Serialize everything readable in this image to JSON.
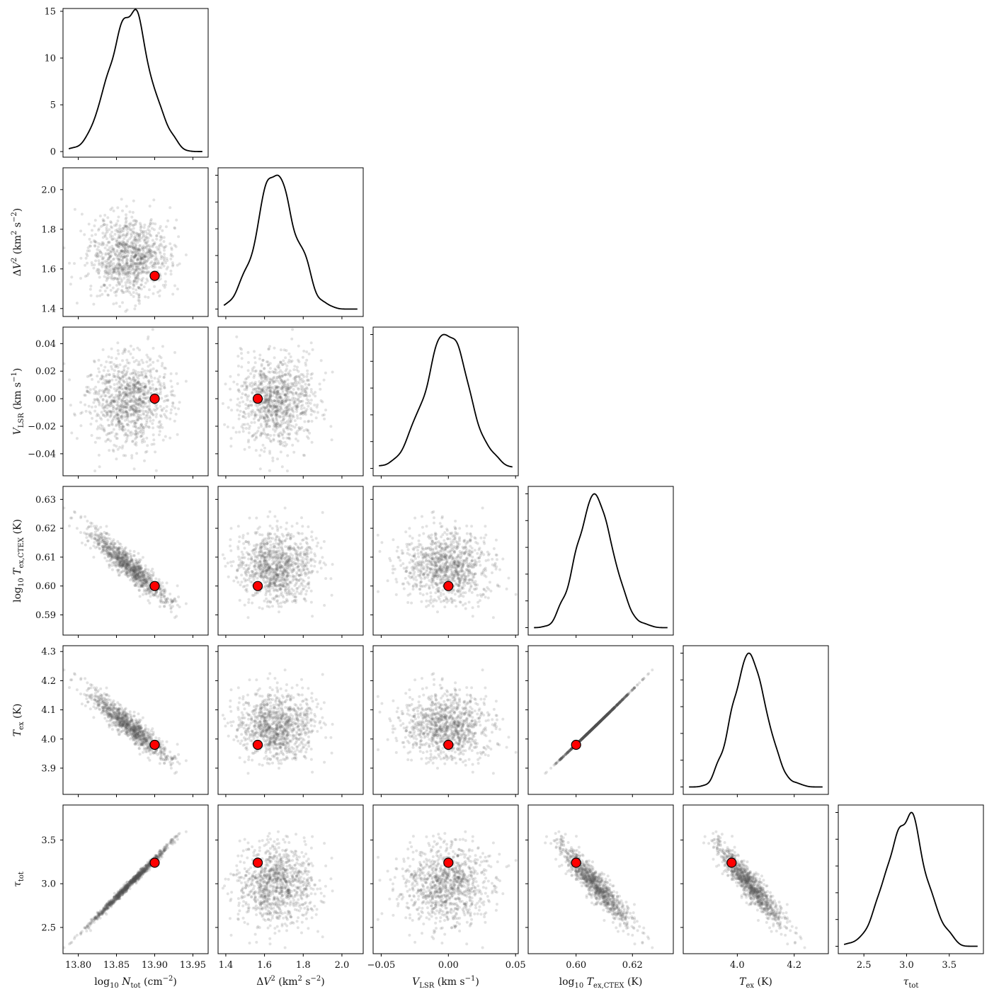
{
  "chart_data": {
    "type": "corner",
    "variables": [
      {
        "label": "log10 N_tot (cm^-2)",
        "range": [
          13.78,
          13.97
        ],
        "ticks": [
          13.8,
          13.85,
          13.9,
          13.95
        ],
        "tick_labels": [
          "13.80",
          "13.85",
          "13.90",
          "13.95"
        ],
        "truth": 13.9,
        "mean": 13.868,
        "sd": 0.027
      },
      {
        "label": "ΔV^2 (km^2 s^-2)",
        "range": [
          1.36,
          2.11
        ],
        "ticks": [
          1.4,
          1.6,
          1.8,
          2.0
        ],
        "tick_labels": [
          "1.4",
          "1.6",
          "1.8",
          "2.0"
        ],
        "truth": 1.565,
        "mean": 1.66,
        "sd": 0.1
      },
      {
        "label": "V_LSR (km s^-1)",
        "range": [
          -0.056,
          0.052
        ],
        "ticks": [
          -0.05,
          0.0,
          0.05
        ],
        "tick_labels": [
          "−0.05",
          "0.00",
          "0.05"
        ],
        "ytick_labels": [
          "−0.04",
          "−0.02",
          "0.00",
          "0.02",
          "0.04"
        ],
        "yticks": [
          -0.04,
          -0.02,
          0.0,
          0.02,
          0.04
        ],
        "truth": 0.0,
        "mean": -0.001,
        "sd": 0.016
      },
      {
        "label": "log10 T_ex,CTEX (K)",
        "range": [
          0.583,
          0.6345
        ],
        "ticks": [
          0.6,
          0.62
        ],
        "tick_labels": [
          "0.60",
          "0.62"
        ],
        "yticks": [
          0.59,
          0.6,
          0.61,
          0.62,
          0.63
        ],
        "ytick_labels": [
          "0.59",
          "0.60",
          "0.61",
          "0.62",
          "0.63"
        ],
        "truth": 0.6,
        "mean": 0.6065,
        "sd": 0.0065
      },
      {
        "label": "T_ex (K)",
        "range": [
          3.81,
          4.32
        ],
        "ticks": [
          4.0,
          4.2
        ],
        "tick_labels": [
          "4.0",
          "4.2"
        ],
        "yticks": [
          3.9,
          4.0,
          4.1,
          4.2,
          4.3
        ],
        "ytick_labels": [
          "3.9",
          "4.0",
          "4.1",
          "4.2",
          "4.3"
        ],
        "truth": 3.98,
        "mean": 4.04,
        "sd": 0.06
      },
      {
        "label": "τ_tot",
        "range": [
          2.2,
          3.9
        ],
        "ticks": [
          2.5,
          3.0,
          3.5
        ],
        "tick_labels": [
          "2.5",
          "3.0",
          "3.5"
        ],
        "truth": 3.24,
        "mean": 3.0,
        "sd": 0.24
      }
    ],
    "diag_yaxis": {
      "ticks": [
        0,
        5,
        10,
        15
      ],
      "tick_labels": [
        "0",
        "5",
        "10",
        "15"
      ],
      "range": [
        -0.6,
        15.3
      ]
    },
    "truth_marker": {
      "color": "#ff0000",
      "edge": "#000000"
    },
    "sample_color": "#555555",
    "kde_color": "#000000",
    "n_samples": 1000
  }
}
